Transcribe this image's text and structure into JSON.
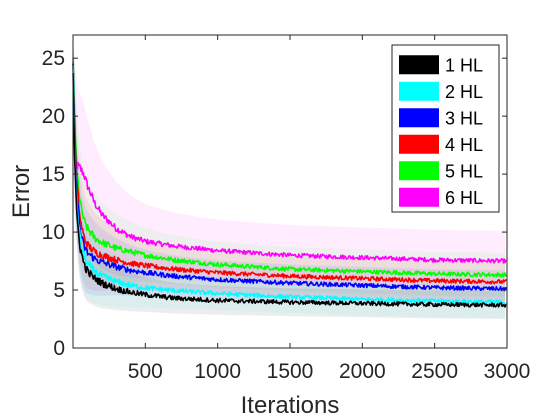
{
  "chart_data": {
    "type": "line",
    "title": "",
    "xlabel": "Iterations",
    "ylabel": "Error",
    "xlim": [
      0,
      3000
    ],
    "ylim": [
      0,
      27
    ],
    "xticks": [
      500,
      1000,
      1500,
      2000,
      2500,
      3000
    ],
    "yticks": [
      0,
      5,
      10,
      15,
      20,
      25
    ],
    "grid": false,
    "legend_position": "top-right",
    "shaded_band": "yes",
    "series": [
      {
        "name": "1 HL",
        "color": "#000000",
        "x": [
          0,
          10,
          25,
          50,
          75,
          100,
          150,
          200,
          300,
          400,
          500,
          700,
          1000,
          1500,
          2000,
          2500,
          3000
        ],
        "values": [
          24.5,
          17.0,
          11.5,
          8.6,
          7.3,
          6.6,
          6.0,
          5.6,
          5.1,
          4.8,
          4.6,
          4.3,
          4.1,
          3.95,
          3.85,
          3.75,
          3.7
        ],
        "band": 1.2
      },
      {
        "name": "2 HL",
        "color": "#00ffff",
        "x": [
          0,
          10,
          25,
          50,
          75,
          100,
          150,
          200,
          300,
          400,
          500,
          700,
          1000,
          1500,
          2000,
          2500,
          3000
        ],
        "values": [
          24.8,
          18.0,
          12.5,
          9.3,
          8.0,
          7.3,
          6.6,
          6.2,
          5.7,
          5.4,
          5.2,
          4.95,
          4.7,
          4.4,
          4.2,
          4.05,
          3.95
        ],
        "band": 1.4
      },
      {
        "name": "3 HL",
        "color": "#0000ff",
        "x": [
          0,
          10,
          25,
          50,
          75,
          100,
          150,
          200,
          300,
          400,
          500,
          700,
          1000,
          1500,
          2000,
          2500,
          3000
        ],
        "values": [
          25.0,
          19.0,
          13.5,
          10.0,
          8.8,
          8.2,
          7.7,
          7.4,
          7.0,
          6.7,
          6.5,
          6.2,
          5.9,
          5.6,
          5.4,
          5.2,
          5.1
        ],
        "band": 1.6
      },
      {
        "name": "4 HL",
        "color": "#ff0000",
        "x": [
          0,
          10,
          25,
          50,
          75,
          100,
          150,
          200,
          300,
          400,
          500,
          700,
          1000,
          1500,
          2000,
          2500,
          3000
        ],
        "values": [
          25.0,
          19.5,
          14.5,
          11.0,
          9.6,
          8.9,
          8.3,
          8.0,
          7.6,
          7.3,
          7.1,
          6.8,
          6.5,
          6.2,
          6.0,
          5.8,
          5.7
        ],
        "band": 1.7
      },
      {
        "name": "5 HL",
        "color": "#00ff00",
        "x": [
          0,
          10,
          25,
          50,
          75,
          100,
          150,
          200,
          300,
          400,
          500,
          700,
          1000,
          1500,
          2000,
          2500,
          3000
        ],
        "values": [
          25.2,
          20.5,
          15.5,
          12.5,
          11.0,
          10.3,
          9.5,
          9.1,
          8.6,
          8.3,
          8.0,
          7.6,
          7.2,
          6.8,
          6.6,
          6.4,
          6.3
        ],
        "band": 1.9
      },
      {
        "name": "6 HL",
        "color": "#ff00ff",
        "x": [
          0,
          10,
          25,
          50,
          75,
          100,
          150,
          200,
          300,
          400,
          500,
          700,
          1000,
          1500,
          2000,
          2500,
          3000
        ],
        "values": [
          25.3,
          18.0,
          15.8,
          15.5,
          15.0,
          14.0,
          12.5,
          11.5,
          10.3,
          9.6,
          9.2,
          8.8,
          8.4,
          8.0,
          7.8,
          7.6,
          7.5
        ],
        "band": 2.6
      }
    ]
  }
}
